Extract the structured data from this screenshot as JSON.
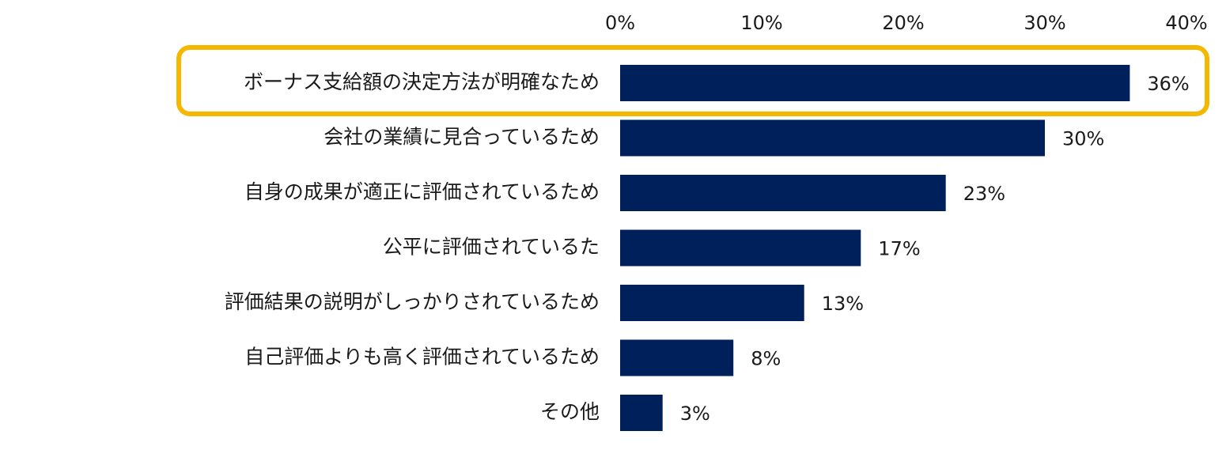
{
  "chart_data": {
    "type": "bar",
    "orientation": "horizontal",
    "categories": [
      "ボーナス支給額の決定方法が明確なため",
      "会社の業績に見合っているため",
      "自身の成果が適正に評価されているため",
      "公平に評価されているた",
      "評価結果の説明がしっかりされているため",
      "自己評価よりも高く評価されているため",
      "その他"
    ],
    "values": [
      36,
      30,
      23,
      17,
      13,
      8,
      3
    ],
    "value_labels": [
      "36%",
      "30%",
      "23%",
      "17%",
      "13%",
      "8%",
      "3%"
    ],
    "xlim": [
      0,
      40
    ],
    "xticks": [
      0,
      10,
      20,
      30,
      40
    ],
    "xtick_labels": [
      "0%",
      "10%",
      "20%",
      "30%",
      "40%"
    ],
    "axis_position": "top",
    "grid": false,
    "bar_color": "#00205b",
    "highlight_index": 0,
    "highlight_color": "#f5b800"
  }
}
